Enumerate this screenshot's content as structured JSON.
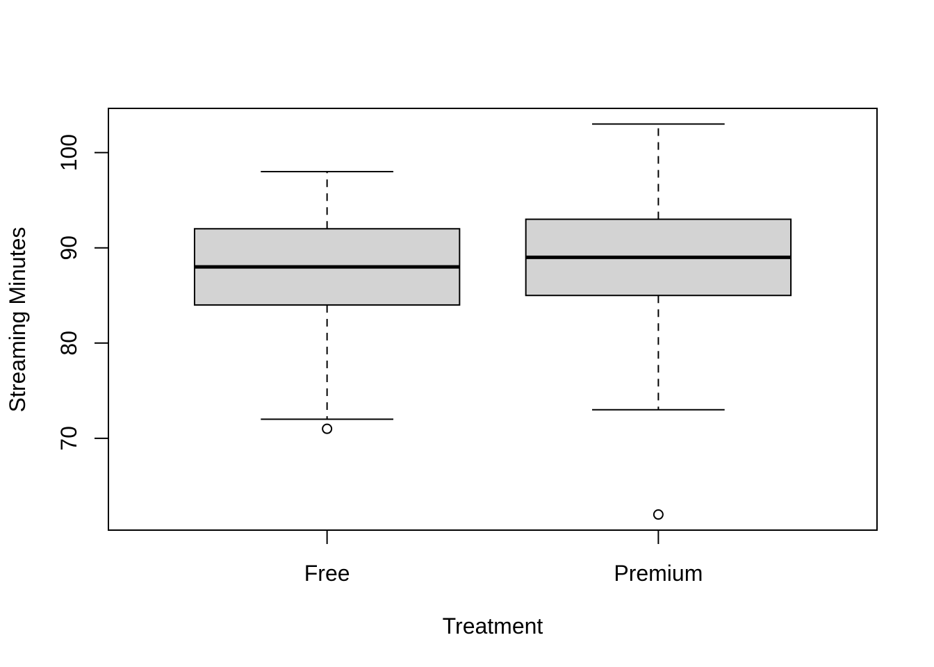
{
  "chart_data": {
    "type": "boxplot",
    "title": "",
    "xlabel": "Treatment",
    "ylabel": "Streaming Minutes",
    "categories": [
      "Free",
      "Premium"
    ],
    "yticks": [
      70,
      80,
      90,
      100
    ],
    "ylim": [
      60.36,
      104.64
    ],
    "grid": false,
    "boxes": [
      {
        "category": "Free",
        "lower_whisker": 72,
        "q1": 84,
        "median": 88,
        "q3": 92,
        "upper_whisker": 98,
        "outliers": [
          71
        ]
      },
      {
        "category": "Premium",
        "lower_whisker": 73,
        "q1": 85,
        "median": 89,
        "q3": 93,
        "upper_whisker": 103,
        "outliers": [
          62
        ]
      }
    ],
    "colors": {
      "box_fill": "#d3d3d3",
      "line": "#000000",
      "background": "#ffffff"
    }
  }
}
